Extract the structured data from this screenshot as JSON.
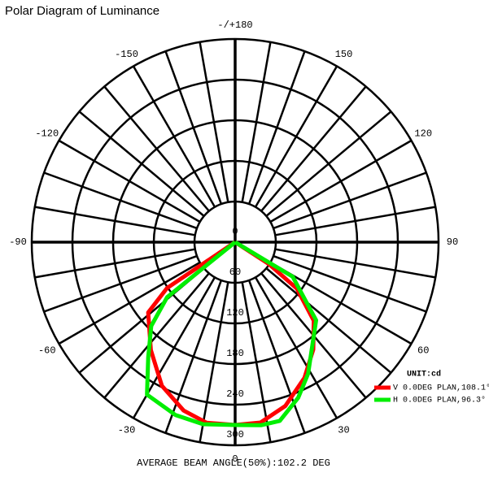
{
  "chart_data": {
    "type": "polar",
    "title": "Polar Diagram of Luminance",
    "rlim": [
      0,
      300
    ],
    "rticks": [
      0,
      60,
      120,
      180,
      240,
      300
    ],
    "thetaticks": [
      0,
      30,
      60,
      90,
      120,
      150,
      {
        "value": 180,
        "label": "-/+180"
      },
      -150,
      -120,
      -90,
      -60,
      -30
    ],
    "legend_title": "UNIT:cd",
    "series": [
      {
        "name": "V 0.0DEG PLAN,108.1°",
        "color": "#ff0000",
        "theta": [
          -60,
          -56,
          -51,
          -38,
          -27,
          -17,
          -9,
          0,
          8,
          17,
          27,
          36,
          45,
          53,
          57,
          60
        ],
        "values": [
          0,
          121,
          165,
          202,
          238,
          260,
          270,
          270,
          269,
          253,
          225,
          196,
          164,
          114,
          59,
          0
        ]
      },
      {
        "name": "H 0.0DEG PLAN,96.3°",
        "color": "#00ee00",
        "theta": [
          -60,
          -51,
          -45,
          -37,
          -30,
          -19,
          -10,
          0,
          8,
          14,
          22,
          29,
          46,
          59,
          62
        ],
        "values": [
          0,
          129,
          175,
          213,
          260,
          270,
          273,
          270,
          273,
          272,
          248,
          222,
          166,
          99,
          0
        ]
      }
    ],
    "footer": "AVERAGE BEAM ANGLE(50%):102.2 DEG"
  }
}
